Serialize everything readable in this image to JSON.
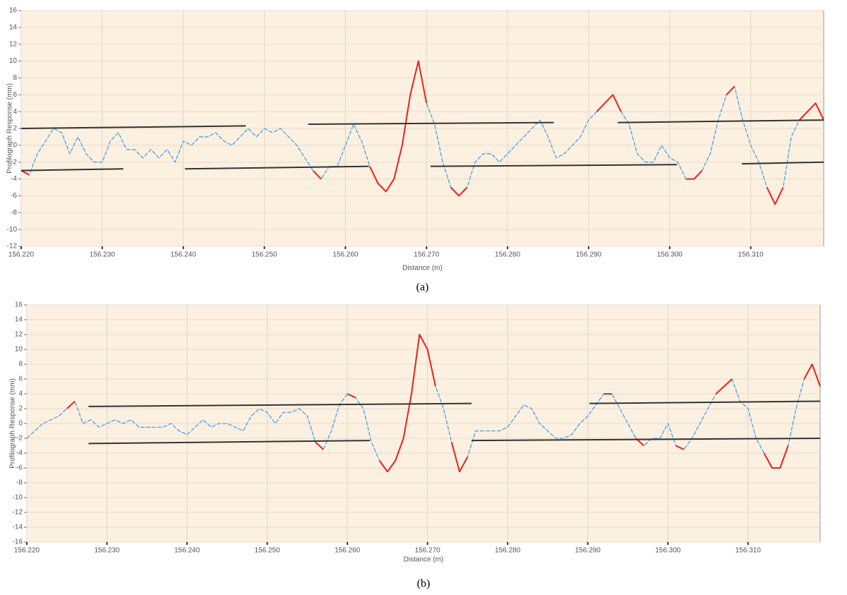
{
  "chart_data": [
    {
      "type": "line",
      "caption": "(a)",
      "x_label": "Distance (m)",
      "y_label": "Profilograph Response (mm)",
      "background": "#fcf0e0",
      "grid": true,
      "xlim": [
        156.22,
        156.319
      ],
      "ylim": [
        -12,
        16
      ],
      "xticks": [
        {
          "value": 156.22,
          "label": "156.220"
        },
        {
          "value": 156.23,
          "label": "156.230"
        },
        {
          "value": 156.24,
          "label": "156.240"
        },
        {
          "value": 156.25,
          "label": "156.250"
        },
        {
          "value": 156.26,
          "label": "156.260"
        },
        {
          "value": 156.27,
          "label": "156.270"
        },
        {
          "value": 156.28,
          "label": "156.280"
        },
        {
          "value": 156.29,
          "label": "156.290"
        },
        {
          "value": 156.3,
          "label": "156.300"
        },
        {
          "value": 156.31,
          "label": "156.310"
        }
      ],
      "yticks": [
        -12,
        -10,
        -8,
        -6,
        -4,
        -2,
        0,
        2,
        4,
        6,
        8,
        10,
        12,
        14,
        16
      ],
      "x": [
        156.22,
        156.221,
        156.222,
        156.223,
        156.224,
        156.225,
        156.226,
        156.227,
        156.228,
        156.229,
        156.23,
        156.231,
        156.232,
        156.233,
        156.234,
        156.235,
        156.236,
        156.237,
        156.238,
        156.239,
        156.24,
        156.241,
        156.242,
        156.243,
        156.244,
        156.245,
        156.246,
        156.247,
        156.248,
        156.249,
        156.25,
        156.251,
        156.252,
        156.253,
        156.254,
        156.255,
        156.256,
        156.257,
        156.258,
        156.259,
        156.26,
        156.261,
        156.262,
        156.263,
        156.264,
        156.265,
        156.266,
        156.267,
        156.268,
        156.269,
        156.27,
        156.271,
        156.272,
        156.273,
        156.274,
        156.275,
        156.276,
        156.277,
        156.278,
        156.279,
        156.28,
        156.281,
        156.282,
        156.283,
        156.284,
        156.285,
        156.286,
        156.287,
        156.288,
        156.289,
        156.29,
        156.291,
        156.292,
        156.293,
        156.294,
        156.295,
        156.296,
        156.297,
        156.298,
        156.299,
        156.3,
        156.301,
        156.302,
        156.303,
        156.304,
        156.305,
        156.306,
        156.307,
        156.308,
        156.309,
        156.31,
        156.311,
        156.312,
        156.313,
        156.314,
        156.315,
        156.316,
        156.317,
        156.318,
        156.319
      ],
      "series": [
        {
          "color": "#4a9fe6",
          "dashed": true,
          "values": [
            -3,
            -3.5,
            -1,
            0.5,
            2,
            1.5,
            -1,
            1,
            -1,
            -2,
            -2,
            0.5,
            1.5,
            -0.5,
            -0.5,
            -1.5,
            -0.5,
            -1.5,
            -0.5,
            -2,
            0.5,
            0,
            1,
            1,
            1.5,
            0.5,
            0,
            1,
            2,
            1,
            2,
            1.5,
            2,
            1,
            0,
            -1.5,
            -3,
            -4,
            -2.5,
            -2.5,
            0,
            2.5,
            0.5,
            -2.5,
            -4.5,
            -5.5,
            -4,
            0,
            6,
            10,
            5,
            2.5,
            -2,
            -5,
            -6,
            -5,
            -2,
            -1,
            -1,
            -2,
            -1,
            0,
            1,
            2,
            3,
            1,
            -1.5,
            -1,
            0,
            1,
            3,
            4,
            5,
            6,
            4,
            2.5,
            -1,
            -2,
            -2,
            0,
            -1.5,
            -2,
            -4,
            -4,
            -3,
            -1,
            3,
            6,
            7,
            3,
            0,
            -2,
            -5,
            -7,
            -5,
            1,
            3,
            4,
            5,
            3
          ]
        },
        {
          "color": "#e8221e",
          "values": [
            -3,
            -3.5,
            null,
            null,
            null,
            null,
            null,
            null,
            null,
            null,
            null,
            null,
            null,
            null,
            null,
            null,
            null,
            null,
            null,
            null,
            null,
            null,
            null,
            null,
            null,
            null,
            null,
            null,
            null,
            null,
            null,
            null,
            null,
            null,
            null,
            null,
            -3,
            -4,
            null,
            null,
            null,
            null,
            null,
            -2.5,
            -4.5,
            -5.5,
            -4,
            0,
            6,
            10,
            5,
            null,
            null,
            -5,
            -6,
            -5,
            null,
            null,
            null,
            null,
            null,
            null,
            null,
            null,
            null,
            null,
            null,
            null,
            null,
            null,
            null,
            4,
            5,
            6,
            4,
            null,
            null,
            null,
            null,
            null,
            null,
            null,
            -4,
            -4,
            -3,
            null,
            null,
            6,
            7,
            null,
            null,
            null,
            -5,
            -7,
            -5,
            null,
            3,
            4,
            5,
            3
          ]
        },
        {
          "color": "#333333",
          "x": [
            156.22,
            156.2477
          ],
          "values": [
            2,
            2.3
          ]
        },
        {
          "color": "#333333",
          "x": [
            156.22,
            156.2326
          ],
          "values": [
            -3,
            -2.8
          ]
        },
        {
          "color": "#333333",
          "x": [
            156.2402,
            156.2629
          ],
          "values": [
            -2.8,
            -2.5
          ]
        },
        {
          "color": "#333333",
          "x": [
            156.2554,
            156.2857
          ],
          "values": [
            2.5,
            2.7
          ]
        },
        {
          "color": "#333333",
          "x": [
            156.2705,
            156.3009
          ],
          "values": [
            -2.5,
            -2.3
          ]
        },
        {
          "color": "#333333",
          "x": [
            156.2936,
            156.319
          ],
          "values": [
            2.7,
            3
          ]
        },
        {
          "color": "#333333",
          "x": [
            156.3089,
            156.319
          ],
          "values": [
            -2.2,
            -2
          ]
        }
      ]
    },
    {
      "type": "line",
      "caption": "(b)",
      "x_label": "Distance (m)",
      "y_label": "Profilograph Response (mm)",
      "background": "#fcf0e0",
      "grid": true,
      "xlim": [
        156.22,
        156.319
      ],
      "ylim": [
        -16,
        16
      ],
      "xticks": [
        {
          "value": 156.22,
          "label": "156.220"
        },
        {
          "value": 156.23,
          "label": "156.230"
        },
        {
          "value": 156.24,
          "label": "156.240"
        },
        {
          "value": 156.25,
          "label": "156.250"
        },
        {
          "value": 156.26,
          "label": "156.260"
        },
        {
          "value": 156.27,
          "label": "156.270"
        },
        {
          "value": 156.28,
          "label": "156.280"
        },
        {
          "value": 156.29,
          "label": "156.290"
        },
        {
          "value": 156.3,
          "label": "156.300"
        },
        {
          "value": 156.31,
          "label": "156.310"
        }
      ],
      "yticks": [
        -16,
        -14,
        -12,
        -10,
        -8,
        -6,
        -4,
        -2,
        0,
        2,
        4,
        6,
        8,
        10,
        12,
        14,
        16
      ],
      "x": [
        156.22,
        156.221,
        156.222,
        156.223,
        156.224,
        156.225,
        156.226,
        156.227,
        156.228,
        156.229,
        156.23,
        156.231,
        156.232,
        156.233,
        156.234,
        156.235,
        156.236,
        156.237,
        156.238,
        156.239,
        156.24,
        156.241,
        156.242,
        156.243,
        156.244,
        156.245,
        156.246,
        156.247,
        156.248,
        156.249,
        156.25,
        156.251,
        156.252,
        156.253,
        156.254,
        156.255,
        156.256,
        156.257,
        156.258,
        156.259,
        156.26,
        156.261,
        156.262,
        156.263,
        156.264,
        156.265,
        156.266,
        156.267,
        156.268,
        156.269,
        156.27,
        156.271,
        156.272,
        156.273,
        156.274,
        156.275,
        156.276,
        156.277,
        156.278,
        156.279,
        156.28,
        156.281,
        156.282,
        156.283,
        156.284,
        156.285,
        156.286,
        156.287,
        156.288,
        156.289,
        156.29,
        156.291,
        156.292,
        156.293,
        156.294,
        156.295,
        156.296,
        156.297,
        156.298,
        156.299,
        156.3,
        156.301,
        156.302,
        156.303,
        156.304,
        156.305,
        156.306,
        156.307,
        156.308,
        156.309,
        156.31,
        156.311,
        156.312,
        156.313,
        156.314,
        156.315,
        156.316,
        156.317,
        156.318,
        156.319
      ],
      "series": [
        {
          "color": "#4a9fe6",
          "dashed": true,
          "values": [
            -2,
            -1,
            0,
            0.5,
            1,
            2,
            3,
            0,
            0.5,
            -0.5,
            0,
            0.5,
            0,
            0.5,
            -0.5,
            -0.5,
            -0.5,
            -0.5,
            0,
            -1,
            -1.5,
            -0.5,
            0.5,
            -0.5,
            0,
            0,
            -0.5,
            -1,
            1,
            2,
            1.5,
            0,
            1.5,
            1.5,
            2,
            1,
            -2.5,
            -3.5,
            -1,
            2.5,
            4,
            3.5,
            2,
            -2.5,
            -5,
            -6.5,
            -5,
            -2,
            4,
            12,
            10,
            5,
            2,
            -2.5,
            -6.5,
            -4.5,
            -1,
            -1,
            -1,
            -1,
            -0.5,
            1,
            2.5,
            2,
            0,
            -1,
            -2,
            -2,
            -1.5,
            0,
            1,
            2.5,
            4,
            4,
            2,
            0,
            -2,
            -3,
            -2,
            -2,
            0,
            -3,
            -3.5,
            -2,
            0,
            2,
            4,
            5,
            6,
            3,
            2,
            -2,
            -4,
            -6,
            -6,
            -3,
            2,
            6,
            8,
            5
          ]
        },
        {
          "color": "#e8221e",
          "values": [
            null,
            null,
            null,
            null,
            null,
            2,
            3,
            null,
            null,
            null,
            null,
            null,
            null,
            null,
            null,
            null,
            null,
            null,
            null,
            null,
            null,
            null,
            null,
            null,
            null,
            null,
            null,
            null,
            null,
            null,
            null,
            null,
            null,
            null,
            null,
            null,
            -2.5,
            -3.5,
            null,
            null,
            4,
            3.5,
            null,
            null,
            -5,
            -6.5,
            -5,
            -2,
            4,
            12,
            10,
            5,
            null,
            -2.5,
            -6.5,
            -4.5,
            null,
            null,
            null,
            null,
            null,
            null,
            null,
            null,
            null,
            null,
            null,
            null,
            null,
            null,
            null,
            null,
            4,
            4,
            null,
            null,
            -2,
            -3,
            null,
            null,
            null,
            -3,
            -3.5,
            null,
            null,
            null,
            4,
            5,
            6,
            null,
            null,
            null,
            -4,
            -6,
            -6,
            -3,
            null,
            6,
            8,
            5
          ]
        },
        {
          "color": "#333333",
          "x": [
            156.2277,
            156.2755
          ],
          "values": [
            2.3,
            2.7
          ]
        },
        {
          "color": "#333333",
          "x": [
            156.2277,
            156.2628
          ],
          "values": [
            -2.7,
            -2.3
          ]
        },
        {
          "color": "#333333",
          "x": [
            156.2902,
            156.319
          ],
          "values": [
            2.7,
            3
          ]
        },
        {
          "color": "#333333",
          "x": [
            156.2755,
            156.319
          ],
          "values": [
            -2.3,
            -2
          ]
        }
      ]
    }
  ]
}
